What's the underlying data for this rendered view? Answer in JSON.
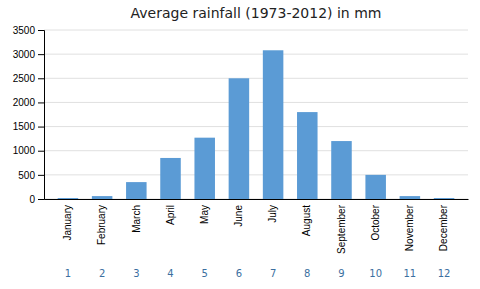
{
  "chart_data": {
    "type": "bar",
    "title": "Average rainfall (1973-2012) in mm",
    "categories": [
      "January",
      "February",
      "March",
      "April",
      "May",
      "June",
      "July",
      "August",
      "September",
      "October",
      "November",
      "December"
    ],
    "month_numbers": [
      "1",
      "2",
      "3",
      "4",
      "5",
      "6",
      "7",
      "8",
      "9",
      "10",
      "11",
      "12"
    ],
    "values": [
      20,
      60,
      350,
      850,
      1270,
      2500,
      3080,
      1800,
      1200,
      500,
      60,
      20
    ],
    "color": "#5B9BD5",
    "ylim": [
      0,
      3500
    ],
    "yticks": [
      0,
      500,
      1000,
      1500,
      2000,
      2500,
      3000,
      3500
    ],
    "grid": true
  }
}
